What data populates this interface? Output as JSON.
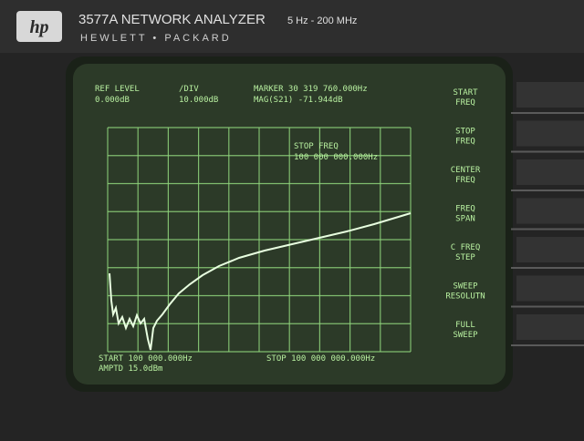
{
  "header": {
    "logo": "hp",
    "model": "3577A NETWORK ANALYZER",
    "range": "5 Hz - 200 MHz",
    "brand": "HEWLETT • PACKARD"
  },
  "screen": {
    "ref_level_label": "REF LEVEL",
    "ref_level_value": "0.000dB",
    "div_label": "/DIV",
    "div_value": "10.000dB",
    "marker": "MARKER 30 319 760.000Hz",
    "marker_mag": "MAG(S21)    -71.944dB",
    "active_entry": {
      "label": "STOP FREQ",
      "value": "100 000 000.000Hz"
    },
    "start": "START 100 000.000Hz",
    "stop": "STOP 100 000 000.000Hz",
    "amptd": "AMPTD 15.0dBm"
  },
  "softkeys": [
    [
      "START",
      "FREQ"
    ],
    [
      "STOP",
      "FREQ"
    ],
    [
      "CENTER",
      "FREQ"
    ],
    [
      "FREQ",
      "SPAN"
    ],
    [
      "C FREQ",
      "STEP"
    ],
    [
      "SWEEP",
      "RESOLUTN"
    ],
    [
      "FULL",
      "SWEEP"
    ]
  ]
}
